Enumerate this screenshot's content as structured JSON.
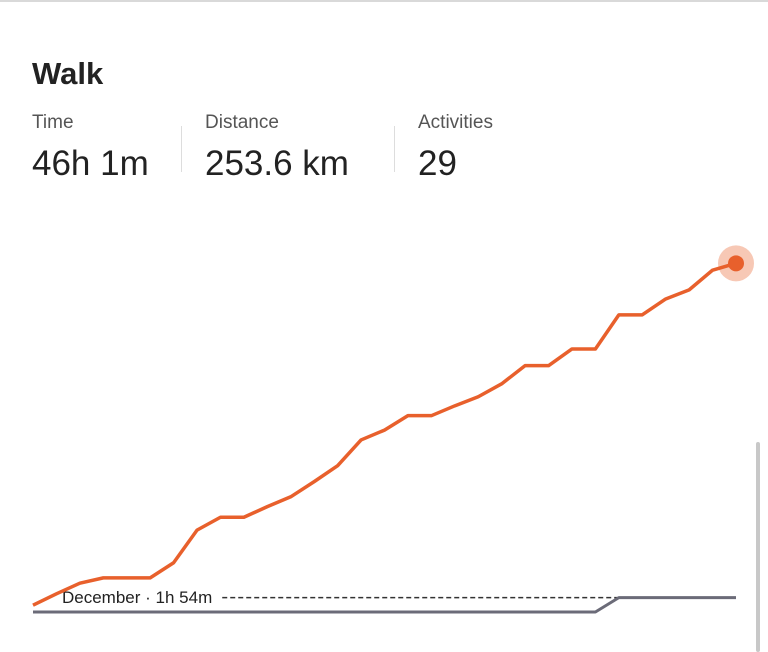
{
  "header": {
    "title": "Walk"
  },
  "stats": [
    {
      "label": "Time",
      "value": "46h 1m"
    },
    {
      "label": "Distance",
      "value": "253.6 km"
    },
    {
      "label": "Activities",
      "value": "29"
    }
  ],
  "chart_data": {
    "type": "line",
    "categories": [
      null,
      null,
      null,
      null,
      null,
      null,
      null,
      null,
      null,
      null,
      null,
      null,
      null,
      null,
      null,
      null,
      null,
      null,
      null,
      null,
      null,
      null,
      null,
      null,
      null,
      null,
      null,
      null,
      null,
      null,
      null
    ],
    "series": [
      {
        "color": "#e8602c",
        "values": [
          0.9,
          2.4,
          3.8,
          4.5,
          4.5,
          4.5,
          6.5,
          10.8,
          12.5,
          12.5,
          13.9,
          15.2,
          17.2,
          19.3,
          22.7,
          24.0,
          25.9,
          25.9,
          27.2,
          28.4,
          30.1,
          32.5,
          32.5,
          34.7,
          34.7,
          39.2,
          39.2,
          41.3,
          42.5,
          45.1,
          46.0
        ]
      },
      {
        "color": "#6b6b78",
        "values": [
          0,
          0,
          0,
          0,
          0,
          0,
          0,
          0,
          0,
          0,
          0,
          0,
          0,
          0,
          0,
          0,
          0,
          0,
          0,
          0,
          0,
          0,
          0,
          0,
          0,
          1.9,
          1.9,
          1.9,
          1.9,
          1.9,
          1.9
        ]
      }
    ],
    "reference": {
      "label": "December · 1h 54m",
      "value": 1.9
    }
  }
}
